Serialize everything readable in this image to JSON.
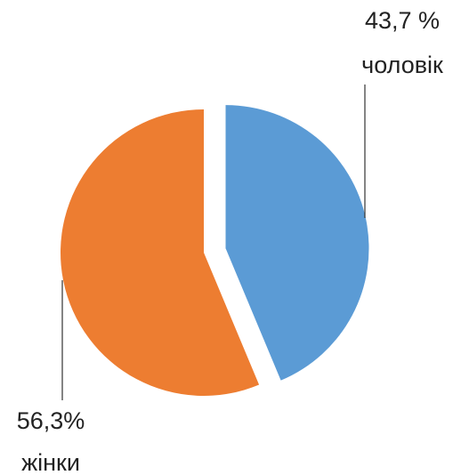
{
  "chart_data": {
    "type": "pie",
    "categories": [
      "чоловік",
      "жінки"
    ],
    "values": [
      43.7,
      56.3
    ],
    "value_labels": [
      "43,7 %",
      "56,3%"
    ],
    "colors": [
      "#5b9bd5",
      "#ed7d31"
    ]
  }
}
